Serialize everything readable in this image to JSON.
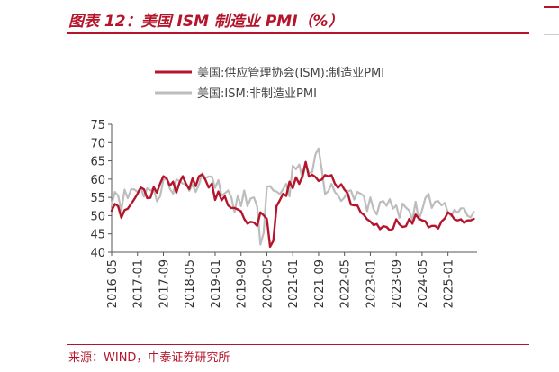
{
  "header": {
    "title": "图表 12：美国 ISM 制造业 PMI（%）",
    "source": "来源：WIND，中泰证券研究所"
  },
  "colors": {
    "accent": "#b5152b",
    "series1": "#b5152b",
    "series2": "#bdbdbd"
  },
  "chart_data": {
    "type": "line",
    "xlabel": "",
    "ylabel": "",
    "ylim": [
      40,
      75
    ],
    "yticks": [
      40,
      45,
      50,
      55,
      60,
      65,
      70,
      75
    ],
    "xlim": [
      "2016-05",
      "2025-10"
    ],
    "xticks": [
      "2016-05",
      "2017-01",
      "2017-09",
      "2018-05",
      "2019-01",
      "2019-09",
      "2020-05",
      "2021-01",
      "2021-09",
      "2022-05",
      "2023-01",
      "2023-09",
      "2024-05",
      "2025-01"
    ],
    "grid": false,
    "legend_position": "top",
    "series": [
      {
        "name": "美国:供应管理协会(ISM):制造业PMI",
        "color": "#b5152b",
        "start": "2016-05",
        "values": [
          51.3,
          53.2,
          52.6,
          49.4,
          51.5,
          51.9,
          53.2,
          54.5,
          56.0,
          57.7,
          57.2,
          54.8,
          54.9,
          57.8,
          56.3,
          58.8,
          60.8,
          60.2,
          58.2,
          59.3,
          56.3,
          59.1,
          60.8,
          58.7,
          57.3,
          60.2,
          58.1,
          60.8,
          61.3,
          59.8,
          57.7,
          58.8,
          54.3,
          56.6,
          54.2,
          55.3,
          52.8,
          52.1,
          52.1,
          51.7,
          51.2,
          49.1,
          47.8,
          48.3,
          48.1,
          47.2,
          50.9,
          50.1,
          49.1,
          41.5,
          43.1,
          52.6,
          54.2,
          56.0,
          55.4,
          59.3,
          57.5,
          60.5,
          58.7,
          60.8,
          64.7,
          60.7,
          61.2,
          60.6,
          59.5,
          59.9,
          61.1,
          60.8,
          61.1,
          58.8,
          57.6,
          58.6,
          57.1,
          56.1,
          53.0,
          52.8,
          52.8,
          50.9,
          50.2,
          49.0,
          48.4,
          47.4,
          47.7,
          46.3,
          47.1,
          46.9,
          46.0,
          46.4,
          49.0,
          47.6,
          46.9,
          47.1,
          49.1,
          47.8,
          50.3,
          49.2,
          48.7,
          48.5,
          46.8,
          47.2,
          47.2,
          46.5,
          48.4,
          49.2,
          50.9,
          50.3,
          49.0,
          48.7,
          49.0,
          48.0,
          48.7,
          48.7,
          49.1
        ]
      },
      {
        "name": "美国:ISM:非制造业PMI",
        "color": "#bdbdbd",
        "start": "2016-05",
        "values": [
          52.9,
          56.5,
          55.5,
          51.4,
          57.1,
          54.8,
          57.2,
          57.2,
          56.5,
          57.6,
          55.2,
          57.5,
          56.9,
          57.4,
          53.9,
          55.3,
          59.8,
          60.1,
          57.4,
          56.0,
          59.9,
          59.5,
          58.8,
          58.6,
          56.8,
          58.6,
          56.5,
          58.5,
          61.6,
          60.3,
          60.7,
          60.7,
          57.6,
          59.7,
          55.5,
          56.1,
          56.9,
          55.1,
          50.9,
          55.5,
          52.6,
          56.9,
          52.6,
          54.7,
          55.0,
          52.5,
          42.1,
          45.3,
          57.9,
          58.1,
          56.9,
          56.6,
          55.9,
          57.2,
          58.7,
          55.3,
          63.7,
          62.7,
          64.0,
          60.1,
          64.1,
          61.7,
          61.9,
          66.7,
          68.4,
          62.5,
          55.9,
          56.7,
          58.7,
          56.5,
          55.5,
          54.0,
          55.0,
          56.7,
          56.9,
          54.4,
          56.5,
          56.0,
          55.4,
          51.2,
          55.0,
          51.7,
          50.3,
          53.7,
          54.0,
          52.7,
          54.5,
          51.9,
          52.8,
          49.4,
          53.3,
          52.2,
          51.4,
          48.8,
          53.8,
          48.8,
          51.5,
          54.8,
          56.0,
          52.1,
          53.8,
          54.0,
          52.8,
          53.5,
          50.8,
          49.9,
          51.6,
          50.8,
          52.0,
          52.0,
          50.0,
          49.5,
          51.0
        ]
      }
    ]
  }
}
